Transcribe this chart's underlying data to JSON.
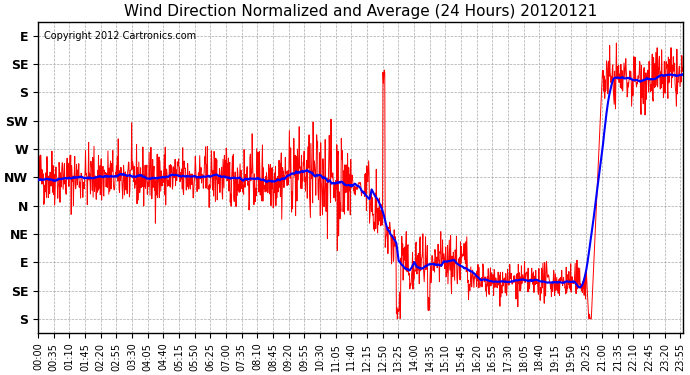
{
  "title": "Wind Direction Normalized and Average (24 Hours) 20120121",
  "copyright": "Copyright 2012 Cartronics.com",
  "background_color": "#ffffff",
  "plot_bg_color": "#ffffff",
  "grid_color": "#aaaaaa",
  "ytick_labels": [
    "S",
    "SE",
    "E",
    "NE",
    "N",
    "NW",
    "W",
    "SW",
    "S",
    "SE",
    "E"
  ],
  "ytick_values": [
    0,
    1,
    2,
    3,
    4,
    5,
    6,
    7,
    8,
    9,
    10
  ],
  "ylim": [
    -0.5,
    10.5
  ],
  "xtick_labels": [
    "00:00",
    "00:35",
    "01:10",
    "01:45",
    "02:20",
    "02:55",
    "03:30",
    "04:05",
    "04:40",
    "05:15",
    "05:50",
    "06:25",
    "07:00",
    "07:35",
    "08:10",
    "08:45",
    "09:20",
    "09:55",
    "10:30",
    "11:05",
    "11:40",
    "12:15",
    "12:50",
    "13:25",
    "14:00",
    "14:35",
    "15:10",
    "15:45",
    "16:20",
    "16:55",
    "17:30",
    "18:05",
    "18:40",
    "19:15",
    "19:50",
    "20:25",
    "21:00",
    "21:35",
    "22:10",
    "22:45",
    "23:20",
    "23:55"
  ],
  "red_line_color": "#ff0000",
  "blue_line_color": "#0000ff",
  "red_linewidth": 0.7,
  "blue_linewidth": 1.5,
  "title_fontsize": 11,
  "copyright_fontsize": 7,
  "tick_label_fontsize": 7,
  "ytick_label_fontsize": 9
}
